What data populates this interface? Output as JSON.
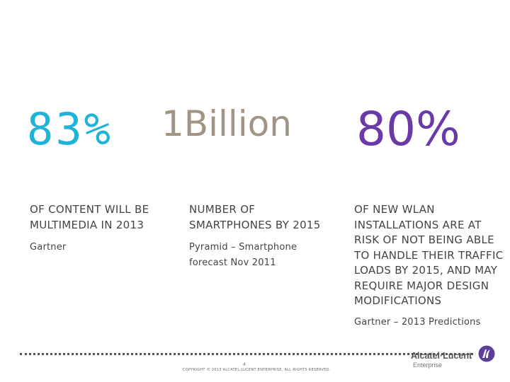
{
  "stats": [
    {
      "value": "83%",
      "color": "#1fb3d9",
      "headline": "OF CONTENT WILL BE MULTIMEDIA IN 2013",
      "source": "Gartner"
    },
    {
      "value": "1Billion",
      "color": "#a09585",
      "headline": "NUMBER OF SMARTPHONES BY 2015",
      "source": "Pyramid – Smartphone forecast Nov 2011"
    },
    {
      "value": "80%",
      "color": "#6a3aa8",
      "headline": "OF NEW WLAN INSTALLATIONS ARE AT RISK OF NOT BEING ABLE TO HANDLE THEIR TRAFFIC LOADS BY 2015, AND MAY REQUIRE MAJOR DESIGN MODIFICATIONS",
      "source": "Gartner – 2013 Predictions"
    }
  ],
  "footer": {
    "page_number": "4",
    "copyright": "COPYRIGHT © 2013 ALCATEL-LUCENT ENTERPRISE. ALL RIGHTS RESERVED."
  },
  "logo": {
    "name": "Alcatel·Lucent",
    "subtitle": "Enterprise",
    "mark_color": "#5a3e99",
    "icon": "alcatel-lucent-logo-icon"
  }
}
